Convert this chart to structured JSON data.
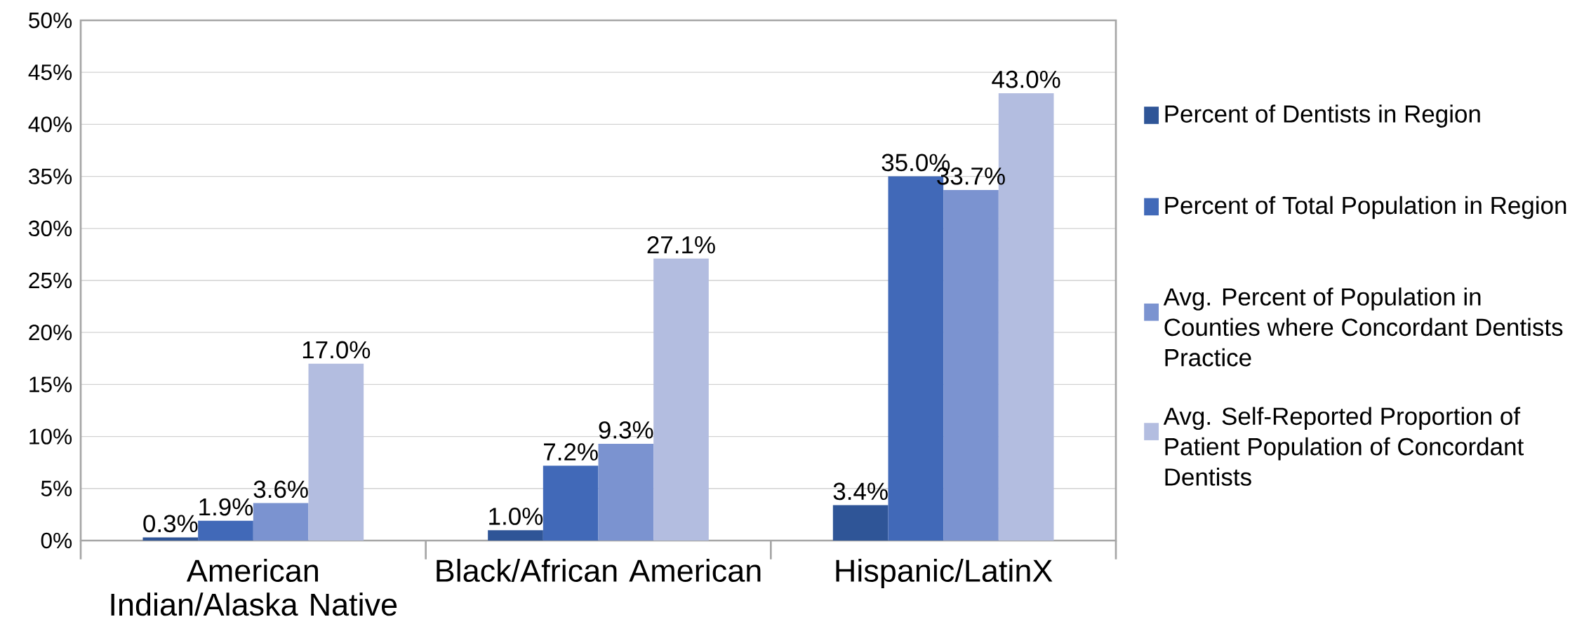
{
  "chart_data": {
    "type": "bar",
    "categories": [
      "American Indian/Alaska Native",
      "Black/African American",
      "Hispanic/LatinX"
    ],
    "series": [
      {
        "name": "Percent of Dentists in Region",
        "color": "#2f5597",
        "values": [
          0.3,
          1.0,
          3.4
        ],
        "value_labels": [
          "0.3%",
          "1.0%",
          "3.4%"
        ]
      },
      {
        "name": "Percent of Total Population in Region",
        "color": "#4169b8",
        "values": [
          1.9,
          7.2,
          35.0
        ],
        "value_labels": [
          "1.9%",
          "7.2%",
          "35.0%"
        ]
      },
      {
        "name": "Avg. Percent of Population in Counties where Concordant Dentists Practice",
        "color": "#7b93d0",
        "values": [
          3.6,
          9.3,
          33.7
        ],
        "value_labels": [
          "3.6%",
          "9.3%",
          "33.7%"
        ]
      },
      {
        "name": "Avg. Self-Reported Proportion of Patient Population of Concordant Dentists",
        "color": "#b3bde0",
        "values": [
          17.0,
          27.1,
          43.0
        ],
        "value_labels": [
          "17.0%",
          "27.1%",
          "43.0%"
        ]
      }
    ],
    "ylim": [
      0,
      50
    ],
    "yticks": [
      {
        "value": 0,
        "label": "0%"
      },
      {
        "value": 5,
        "label": "5%"
      },
      {
        "value": 10,
        "label": "10%"
      },
      {
        "value": 15,
        "label": "15%"
      },
      {
        "value": 20,
        "label": "20%"
      },
      {
        "value": 25,
        "label": "25%"
      },
      {
        "value": 30,
        "label": "30%"
      },
      {
        "value": 35,
        "label": "35%"
      },
      {
        "value": 40,
        "label": "40%"
      },
      {
        "value": 45,
        "label": "45%"
      },
      {
        "value": 50,
        "label": "50%"
      }
    ],
    "grid": "y",
    "legend": "right"
  }
}
